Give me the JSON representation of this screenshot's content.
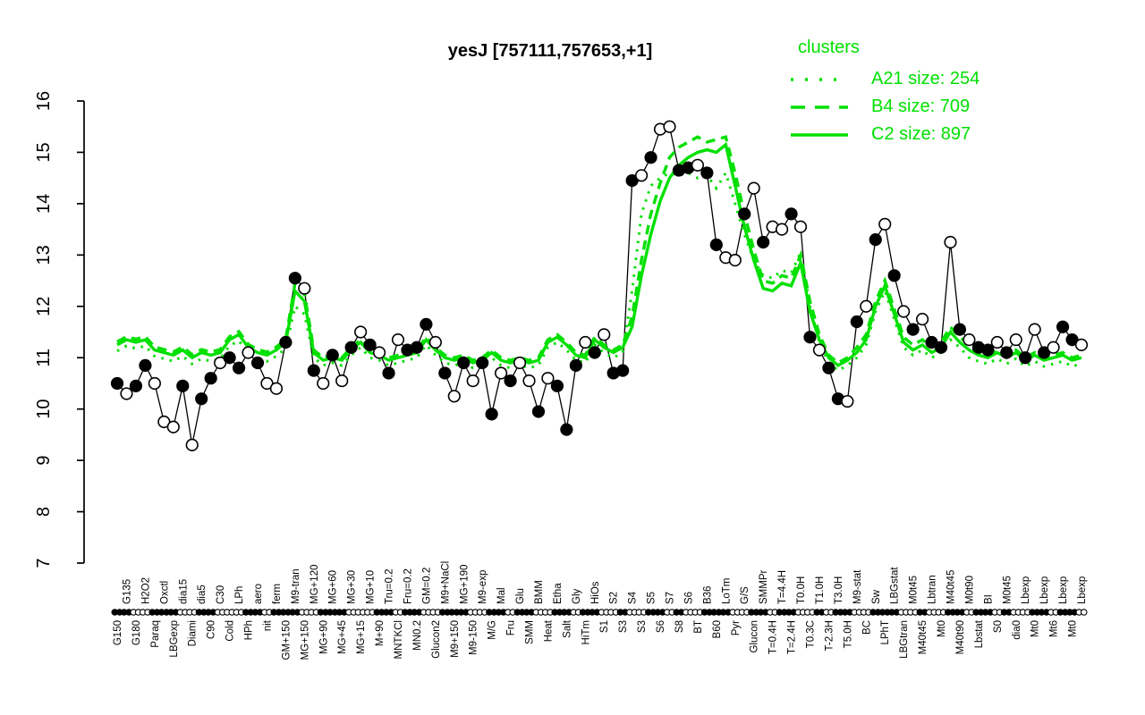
{
  "title": "yesJ [757111,757653,+1]",
  "colors": {
    "cluster": "#00e000",
    "gene": "#000000",
    "background": "#ffffff"
  },
  "legend": {
    "title": "clusters",
    "entries": [
      {
        "label": "A21 size: 254",
        "name": "A21",
        "size": 254,
        "style": "dotted"
      },
      {
        "label": "B4 size: 709",
        "name": "B4",
        "size": 709,
        "style": "dashed"
      },
      {
        "label": "C2 size: 897",
        "name": "C2",
        "size": 897,
        "style": "solid"
      }
    ]
  },
  "chart_data": {
    "type": "line",
    "title": "yesJ [757111,757653,+1]",
    "xlabel": "",
    "ylabel": "",
    "ylim": [
      7,
      16
    ],
    "yticks": [
      7,
      8,
      9,
      10,
      11,
      12,
      13,
      14,
      15,
      16
    ],
    "label_placement": "alternating-bottom-top",
    "conditions": [
      "G150",
      "G135",
      "G180",
      "H2O2",
      "Paraq",
      "Oxctl",
      "LBGexp",
      "dia15",
      "Diami",
      "dia5",
      "C90",
      "C30",
      "Cold",
      "LPh",
      "HPh",
      "aero",
      "nit",
      "ferm",
      "GM+150",
      "M9-tran",
      "MG+150",
      "MG+120",
      "MG+90",
      "MG+60",
      "MG+45",
      "MG+30",
      "MG+15",
      "MG+10",
      "M+90",
      "Tru=0.2",
      "MNTKCl",
      "Fru=0.2",
      "MN0.2",
      "GM=0.2",
      "Glucon2",
      "M9+NaCl",
      "M9+150",
      "MG+190",
      "M9-150",
      "M9-exp",
      "M/G",
      "Mal",
      "Fru",
      "Glu",
      "SMM",
      "BMM",
      "Heat",
      "Etha",
      "Salt",
      "Gly",
      "HiTm",
      "HiOs",
      "S1",
      "S2",
      "S3",
      "S4",
      "S3",
      "S5",
      "S6",
      "S7",
      "S8",
      "S6",
      "BT",
      "B36",
      "B60",
      "LoTm",
      "Pyr",
      "G/S",
      "Glucon",
      "SMMPr",
      "T=0.4H",
      "T=4.4H",
      "T=2.4H",
      "T0.0H",
      "T0.3C",
      "T1.0H",
      "T-2.3H",
      "T3.0H",
      "T5.0H",
      "M9-stat",
      "BC",
      "Sw",
      "LPhT",
      "LBGstat",
      "LBGtran",
      "M0t45",
      "M40t45",
      "Lbtran",
      "Mt0",
      "M40t45",
      "M40t90",
      "M0t90",
      "Lbstat",
      "BI",
      "S0",
      "M0t45",
      "dia0",
      "Lbexp",
      "Mt0",
      "Lbexp",
      "Mt6",
      "Lbexp",
      "Mt0",
      "Lbexp"
    ],
    "gene_values": [
      10.5,
      10.3,
      10.45,
      10.85,
      10.5,
      9.75,
      9.65,
      10.45,
      9.3,
      10.2,
      10.6,
      10.9,
      11.0,
      10.8,
      11.1,
      10.9,
      10.5,
      10.4,
      11.3,
      12.55,
      12.35,
      10.75,
      10.5,
      11.05,
      10.55,
      11.2,
      11.5,
      11.25,
      11.1,
      10.7,
      11.35,
      11.15,
      11.2,
      11.65,
      11.3,
      10.7,
      10.25,
      10.9,
      10.55,
      10.9,
      9.9,
      10.7,
      10.55,
      10.9,
      10.55,
      9.95,
      10.6,
      10.45,
      9.6,
      10.85,
      11.3,
      11.1,
      11.45,
      10.7,
      10.75,
      14.45,
      14.55,
      14.9,
      15.45,
      15.5,
      14.65,
      14.7,
      14.75,
      14.6,
      13.2,
      12.95,
      12.9,
      13.8,
      14.3,
      13.25,
      13.55,
      13.5,
      13.8,
      13.55,
      11.4,
      11.15,
      10.8,
      10.2,
      10.15,
      11.7,
      12.0,
      13.3,
      13.6,
      12.6,
      11.9,
      11.55,
      11.75,
      11.3,
      11.2,
      13.25,
      11.55,
      11.35,
      11.2,
      11.15,
      11.3,
      11.1,
      11.35,
      11.0,
      11.55,
      11.1,
      11.2,
      11.6,
      11.35,
      11.25
    ],
    "gene_filled": [
      1,
      0,
      1,
      1,
      0,
      0,
      0,
      1,
      0,
      1,
      1,
      0,
      1,
      1,
      0,
      1,
      0,
      0,
      1,
      1,
      0,
      1,
      0,
      1,
      0,
      1,
      0,
      1,
      0,
      1,
      0,
      1,
      1,
      1,
      0,
      1,
      0,
      1,
      0,
      1,
      1,
      0,
      1,
      0,
      0,
      1,
      0,
      1,
      1,
      1,
      0,
      1,
      0,
      1,
      1,
      1,
      0,
      1,
      0,
      0,
      1,
      1,
      0,
      1,
      1,
      0,
      0,
      1,
      0,
      1,
      0,
      0,
      1,
      0,
      1,
      0,
      1,
      1,
      0,
      1,
      0,
      1,
      0,
      1,
      0,
      1,
      0,
      1,
      1,
      0,
      1,
      0,
      1,
      1,
      0,
      1,
      0,
      1,
      0,
      1,
      0,
      1,
      1,
      0
    ],
    "axis_glyphs": [
      1,
      1,
      0,
      0,
      1,
      1,
      1,
      0,
      0,
      1,
      1,
      0,
      0,
      0,
      1,
      1,
      0,
      1,
      1,
      1,
      0,
      0,
      1,
      1,
      1,
      0,
      0,
      0,
      1,
      1,
      0,
      1,
      1,
      0,
      0,
      1,
      1,
      1,
      0,
      0,
      1,
      1,
      0,
      1,
      1,
      0,
      0,
      1,
      1,
      0,
      1,
      1,
      0,
      0,
      1,
      0,
      0,
      1,
      1,
      0,
      1,
      0,
      0,
      1,
      1,
      1,
      0,
      0,
      1,
      1,
      0,
      1,
      1,
      0,
      0,
      1,
      0,
      1,
      1,
      0,
      0,
      1,
      1,
      1,
      0,
      0,
      1,
      0,
      0,
      1,
      1,
      0,
      1,
      1,
      0,
      1,
      0,
      0,
      1,
      1,
      0,
      1,
      1,
      0
    ],
    "series": [
      {
        "name": "A21",
        "size": 254,
        "style": "dotted",
        "values": [
          11.13,
          11.23,
          11.18,
          11.23,
          11.03,
          10.98,
          10.93,
          11.03,
          10.88,
          10.98,
          10.93,
          10.98,
          11.23,
          11.33,
          11.08,
          10.98,
          10.93,
          11.03,
          11.18,
          12.0,
          11.85,
          11.0,
          10.85,
          10.9,
          10.85,
          11.05,
          11.2,
          11.0,
          10.95,
          10.85,
          10.9,
          10.95,
          11.0,
          11.25,
          11.05,
          10.9,
          10.85,
          10.9,
          10.8,
          10.85,
          11.0,
          10.85,
          10.8,
          10.85,
          10.8,
          10.85,
          11.2,
          11.3,
          11.15,
          10.95,
          10.9,
          11.25,
          11.1,
          11.0,
          11.1,
          12.3,
          13.8,
          14.35,
          14.5,
          14.6,
          14.55,
          14.6,
          14.5,
          14.55,
          14.3,
          14.6,
          14.0,
          13.4,
          12.9,
          12.6,
          12.55,
          12.7,
          12.65,
          13.05,
          12.0,
          11.3,
          10.9,
          10.75,
          10.85,
          11.0,
          11.25,
          11.9,
          12.3,
          11.75,
          11.2,
          11.05,
          11.15,
          11.0,
          11.1,
          11.35,
          11.2,
          11.0,
          10.93,
          10.88,
          10.98,
          10.88,
          10.98,
          10.83,
          10.93,
          10.83,
          10.88,
          10.93,
          10.83,
          10.88
        ]
      },
      {
        "name": "B4",
        "size": 709,
        "style": "dashed",
        "values": [
          11.31,
          11.41,
          11.36,
          11.41,
          11.21,
          11.16,
          11.11,
          11.21,
          11.06,
          11.16,
          11.11,
          11.16,
          11.41,
          11.51,
          11.26,
          11.16,
          11.11,
          11.21,
          11.36,
          12.45,
          12.25,
          11.15,
          11.0,
          11.05,
          11.0,
          11.2,
          11.35,
          11.15,
          11.1,
          11.0,
          11.05,
          11.1,
          11.15,
          11.4,
          11.2,
          11.05,
          11.0,
          11.05,
          10.95,
          11.0,
          11.15,
          11.0,
          10.95,
          11.0,
          10.95,
          11.0,
          11.35,
          11.45,
          11.3,
          11.1,
          11.05,
          11.4,
          11.25,
          11.15,
          11.25,
          11.8,
          12.9,
          13.8,
          14.4,
          14.9,
          15.1,
          15.2,
          15.3,
          15.2,
          15.25,
          15.3,
          14.6,
          13.8,
          13.1,
          12.5,
          12.45,
          12.6,
          12.55,
          13.0,
          12.1,
          11.45,
          11.05,
          10.9,
          11.0,
          11.2,
          11.45,
          12.1,
          12.5,
          11.95,
          11.4,
          11.25,
          11.35,
          11.2,
          11.3,
          11.6,
          11.4,
          11.25,
          11.1,
          11.05,
          11.15,
          11.05,
          11.15,
          11.0,
          11.1,
          11.0,
          11.05,
          11.1,
          11.0,
          11.05
        ]
      },
      {
        "name": "C2",
        "size": 897,
        "style": "solid",
        "values": [
          11.25,
          11.35,
          11.3,
          11.35,
          11.15,
          11.1,
          11.05,
          11.15,
          11.0,
          11.1,
          11.05,
          11.1,
          11.35,
          11.45,
          11.2,
          11.1,
          11.05,
          11.15,
          11.3,
          12.3,
          12.1,
          11.1,
          10.95,
          11.0,
          10.95,
          11.15,
          11.3,
          11.1,
          11.05,
          10.95,
          11.0,
          11.05,
          11.1,
          11.35,
          11.15,
          11.0,
          10.95,
          11.0,
          10.9,
          10.95,
          11.1,
          10.95,
          10.9,
          10.95,
          10.9,
          10.95,
          11.3,
          11.4,
          11.25,
          11.05,
          11.0,
          11.35,
          11.2,
          11.1,
          11.2,
          11.6,
          12.6,
          13.4,
          14.05,
          14.5,
          14.75,
          14.9,
          15.0,
          15.05,
          15.0,
          15.15,
          14.35,
          13.55,
          12.9,
          12.35,
          12.3,
          12.45,
          12.4,
          12.85,
          11.9,
          11.35,
          11.0,
          10.85,
          10.95,
          11.1,
          11.35,
          12.0,
          12.4,
          11.85,
          11.3,
          11.15,
          11.25,
          11.1,
          11.2,
          11.5,
          11.3,
          11.15,
          11.05,
          11.0,
          11.1,
          11.0,
          11.1,
          10.95,
          11.05,
          10.95,
          11.0,
          11.05,
          10.95,
          11.0
        ]
      }
    ]
  }
}
